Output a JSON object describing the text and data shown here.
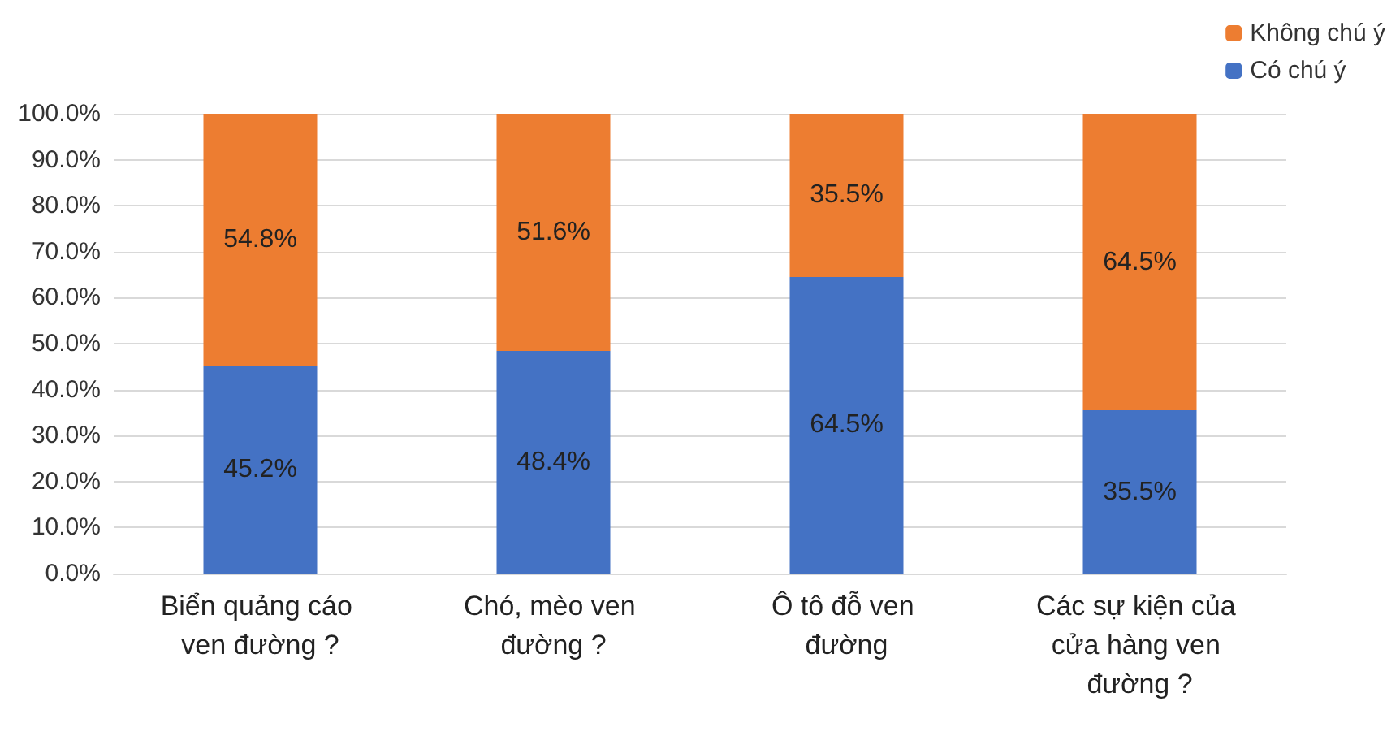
{
  "chart_data": {
    "type": "bar",
    "stacked": true,
    "categories": [
      "Biển quảng cáo ven đường ?",
      "Chó, mèo ven đường ?",
      "Ô tô đỗ ven đường",
      "Các sự kiện của cửa hàng ven đường ?"
    ],
    "series": [
      {
        "name": "Có chú ý",
        "color": "#4472c4",
        "values": [
          45.2,
          48.4,
          64.5,
          35.5
        ],
        "value_labels": [
          "45.2%",
          "48.4%",
          "64.5%",
          "35.5%"
        ]
      },
      {
        "name": "Không chú ý",
        "color": "#ed7d31",
        "values": [
          54.8,
          51.6,
          35.5,
          64.5
        ],
        "value_labels": [
          "54.8%",
          "51.6%",
          "35.5%",
          "64.5%"
        ]
      }
    ],
    "ylim": [
      0,
      100
    ],
    "yticks": [
      {
        "value": 0,
        "label": "0.0%"
      },
      {
        "value": 10,
        "label": "10.0%"
      },
      {
        "value": 20,
        "label": "20.0%"
      },
      {
        "value": 30,
        "label": "30.0%"
      },
      {
        "value": 40,
        "label": "40.0%"
      },
      {
        "value": 50,
        "label": "50.0%"
      },
      {
        "value": 60,
        "label": "60.0%"
      },
      {
        "value": 70,
        "label": "70.0%"
      },
      {
        "value": 80,
        "label": "80.0%"
      },
      {
        "value": 90,
        "label": "90.0%"
      },
      {
        "value": 100,
        "label": "100.0%"
      }
    ],
    "grid": true,
    "legend": "top right"
  }
}
